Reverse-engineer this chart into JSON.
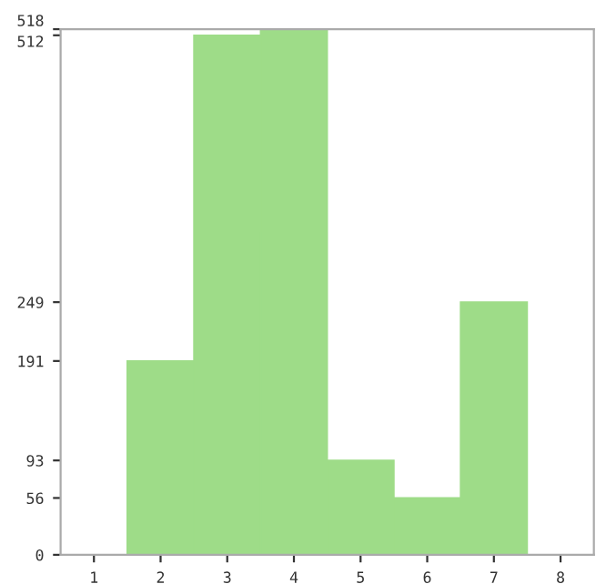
{
  "chart_data": {
    "type": "bar",
    "categories": [
      "1",
      "2",
      "3",
      "4",
      "5",
      "6",
      "7",
      "8"
    ],
    "values": [
      0,
      191,
      512,
      518,
      93,
      56,
      249,
      0
    ],
    "color": "#9edc88",
    "ylim": [
      0,
      518
    ],
    "yticks": [
      0,
      56,
      93,
      191,
      249,
      512,
      518
    ],
    "grid": false
  }
}
